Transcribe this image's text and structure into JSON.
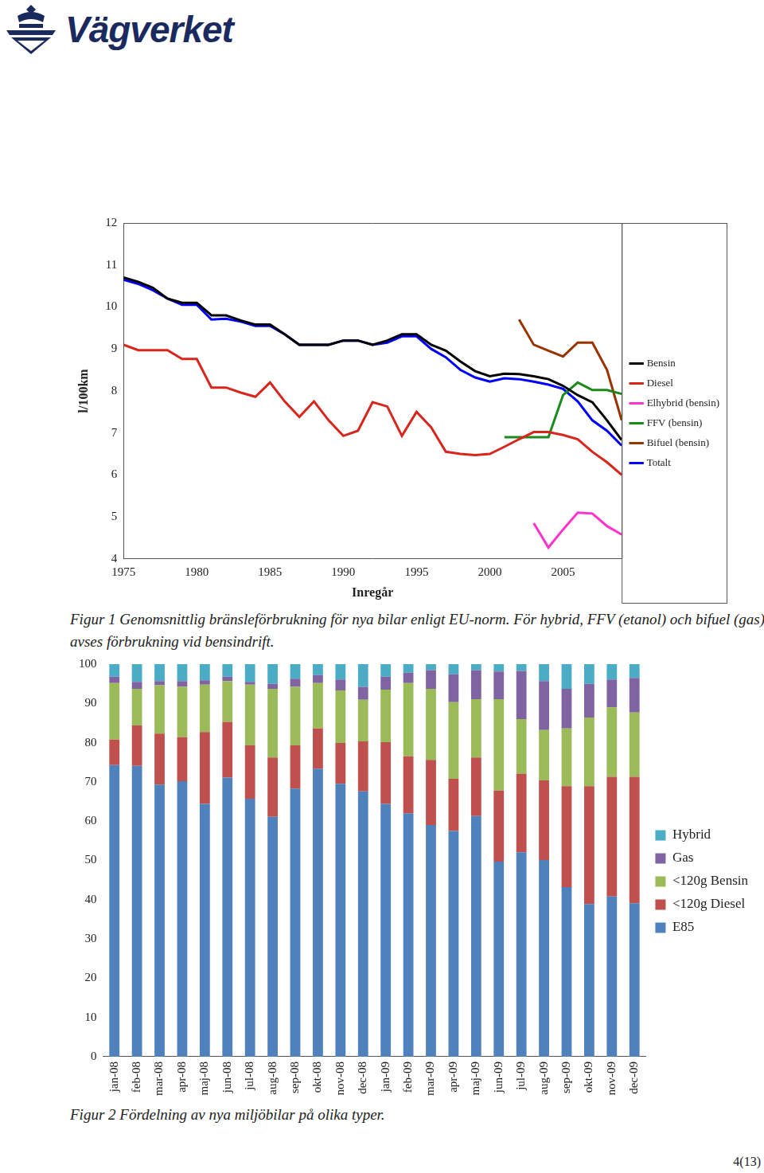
{
  "logo": "Vägverket",
  "page_number": "4(13)",
  "chart_data": [
    {
      "type": "line",
      "caption": "Figur 1 Genomsnittlig bränsleförbrukning för nya bilar enligt EU-norm. För hybrid, FFV (etanol) och bifuel (gas) avses förbrukning vid bensindrift.",
      "x_label": "Inregår",
      "y_label": "l/100km",
      "x": [
        1975,
        1976,
        1977,
        1978,
        1979,
        1980,
        1981,
        1982,
        1983,
        1984,
        1985,
        1986,
        1987,
        1988,
        1989,
        1990,
        1991,
        1992,
        1993,
        1994,
        1995,
        1996,
        1997,
        1998,
        1999,
        2000,
        2001,
        2002,
        2003,
        2004,
        2005,
        2006,
        2007,
        2008,
        2009
      ],
      "xlim": [
        1975,
        2009
      ],
      "xticks": [
        1975,
        1980,
        1985,
        1990,
        1995,
        2000,
        2005
      ],
      "ylim": [
        4,
        12
      ],
      "yticks": [
        4,
        5,
        6,
        7,
        8,
        9,
        10,
        11,
        12
      ],
      "grid": false,
      "legend": "right",
      "series": [
        {
          "name": "Bensin",
          "color": "#000000",
          "values": [
            10.7,
            10.6,
            10.46,
            10.2,
            10.1,
            10.1,
            9.8,
            9.8,
            9.68,
            9.58,
            9.58,
            9.35,
            9.1,
            9.1,
            9.1,
            9.2,
            9.2,
            9.1,
            9.2,
            9.35,
            9.35,
            9.1,
            8.96,
            8.7,
            8.47,
            8.35,
            8.41,
            8.4,
            8.35,
            8.28,
            8.12,
            7.9,
            7.73,
            7.3,
            6.83
          ]
        },
        {
          "name": "Diesel",
          "color": "#d9261c",
          "values": [
            9.1,
            8.97,
            8.97,
            8.97,
            8.76,
            8.76,
            8.08,
            8.08,
            7.96,
            7.86,
            8.2,
            7.75,
            7.38,
            7.75,
            7.3,
            6.93,
            7.05,
            7.73,
            7.63,
            6.93,
            7.5,
            7.13,
            6.55,
            6.5,
            6.47,
            6.5,
            6.67,
            6.85,
            7.02,
            7.02,
            6.95,
            6.85,
            6.55,
            6.3,
            6.0
          ]
        },
        {
          "name": "Elhybrid (bensin)",
          "color": "#ff33cc",
          "values": [
            null,
            null,
            null,
            null,
            null,
            null,
            null,
            null,
            null,
            null,
            null,
            null,
            null,
            null,
            null,
            null,
            null,
            null,
            null,
            null,
            null,
            null,
            null,
            null,
            null,
            null,
            null,
            null,
            4.85,
            4.27,
            4.7,
            5.1,
            5.08,
            4.78,
            4.58
          ]
        },
        {
          "name": "FFV (bensin)",
          "color": "#1a8a1a",
          "values": [
            null,
            null,
            null,
            null,
            null,
            null,
            null,
            null,
            null,
            null,
            null,
            null,
            null,
            null,
            null,
            null,
            null,
            null,
            null,
            null,
            null,
            null,
            null,
            null,
            null,
            null,
            6.9,
            6.9,
            6.9,
            6.9,
            7.9,
            8.2,
            8.02,
            8.02,
            7.93
          ]
        },
        {
          "name": "Bifuel (bensin)",
          "color": "#993300",
          "values": [
            null,
            null,
            null,
            null,
            null,
            null,
            null,
            null,
            null,
            null,
            null,
            null,
            null,
            null,
            null,
            null,
            null,
            null,
            null,
            null,
            null,
            null,
            null,
            null,
            null,
            null,
            null,
            9.7,
            9.1,
            8.96,
            8.82,
            9.15,
            9.15,
            8.5,
            7.3
          ]
        },
        {
          "name": "Totalt",
          "color": "#0000ff",
          "values": [
            10.65,
            10.55,
            10.4,
            10.2,
            10.05,
            10.05,
            9.7,
            9.72,
            9.65,
            9.55,
            9.55,
            9.35,
            9.1,
            9.1,
            9.1,
            9.2,
            9.2,
            9.1,
            9.15,
            9.3,
            9.3,
            9.0,
            8.8,
            8.5,
            8.32,
            8.22,
            8.3,
            8.28,
            8.22,
            8.15,
            8.05,
            7.75,
            7.3,
            7.05,
            6.7
          ]
        }
      ]
    },
    {
      "type": "bar",
      "caption": "Figur 2 Fördelning av nya miljöbilar på olika typer.",
      "categories": [
        "jan-08",
        "feb-08",
        "mar-08",
        "apr-08",
        "maj-08",
        "jun-08",
        "jul-08",
        "aug-08",
        "sep-08",
        "okt-08",
        "nov-08",
        "dec-08",
        "jan-09",
        "feb-09",
        "mar-09",
        "apr-09",
        "maj-09",
        "jun-09",
        "jul-09",
        "aug-09",
        "sep-09",
        "okt-09",
        "nov-09",
        "dec-09"
      ],
      "ylim": [
        0,
        100
      ],
      "yticks": [
        0,
        10,
        20,
        30,
        40,
        50,
        60,
        70,
        80,
        90,
        100
      ],
      "stacked": true,
      "grid": false,
      "legend": "right",
      "series": [
        {
          "name": "E85",
          "color": "#4f81bd",
          "values": [
            74.3,
            74.1,
            69.3,
            70.2,
            64.4,
            71.1,
            65.7,
            61.1,
            68.3,
            73.4,
            69.5,
            67.6,
            64.4,
            62.0,
            59.0,
            57.5,
            61.3,
            49.7,
            52.1,
            50.1,
            43.2,
            38.9,
            40.8,
            39.1
          ]
        },
        {
          "name": "<120g Diesel",
          "color": "#c0504d",
          "values": [
            6.5,
            10.3,
            13.0,
            11.2,
            18.3,
            14.2,
            13.6,
            15.1,
            11.0,
            10.2,
            10.4,
            12.7,
            15.7,
            14.5,
            16.6,
            13.3,
            14.9,
            18.1,
            20.0,
            20.3,
            25.7,
            30.0,
            30.5,
            32.2
          ]
        },
        {
          "name": "<120g Bensin",
          "color": "#9bbb59",
          "values": [
            14.4,
            9.3,
            12.3,
            12.8,
            12.1,
            10.4,
            15.5,
            17.5,
            14.9,
            11.6,
            13.4,
            10.6,
            13.4,
            18.7,
            18.1,
            19.5,
            14.9,
            23.3,
            13.9,
            12.8,
            14.7,
            17.5,
            17.7,
            16.4
          ]
        },
        {
          "name": "Gas",
          "color": "#8064a2",
          "values": [
            1.6,
            1.8,
            1.1,
            1.5,
            1.1,
            1.1,
            0.7,
            1.3,
            2.1,
            2.0,
            2.8,
            3.3,
            3.3,
            2.6,
            4.8,
            7.1,
            7.4,
            7.0,
            12.3,
            12.5,
            10.1,
            8.6,
            7.1,
            8.8
          ]
        },
        {
          "name": "Hybrid",
          "color": "#4bacc6",
          "values": [
            3.2,
            4.5,
            4.3,
            4.3,
            4.1,
            3.2,
            4.5,
            5.0,
            3.7,
            2.8,
            3.9,
            5.8,
            3.2,
            2.2,
            1.5,
            2.6,
            1.5,
            1.9,
            1.7,
            4.3,
            6.3,
            5.0,
            3.9,
            3.5
          ]
        }
      ]
    }
  ]
}
